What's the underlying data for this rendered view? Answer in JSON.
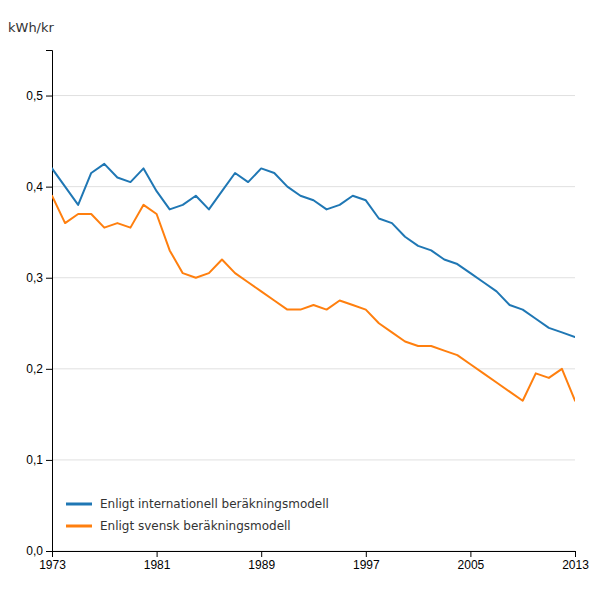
{
  "chart_data": {
    "type": "line",
    "ylabel": "kWh/kr",
    "x": [
      1973,
      1974,
      1975,
      1976,
      1977,
      1978,
      1979,
      1980,
      1981,
      1982,
      1983,
      1984,
      1985,
      1986,
      1987,
      1988,
      1989,
      1990,
      1991,
      1992,
      1993,
      1994,
      1995,
      1996,
      1997,
      1998,
      1999,
      2000,
      2001,
      2002,
      2003,
      2004,
      2005,
      2006,
      2007,
      2008,
      2009,
      2010,
      2011,
      2012,
      2013
    ],
    "series": [
      {
        "name": "Enligt internationell beräkningsmodell",
        "values": [
          0.42,
          0.4,
          0.38,
          0.415,
          0.425,
          0.41,
          0.405,
          0.42,
          0.395,
          0.375,
          0.38,
          0.39,
          0.375,
          0.395,
          0.415,
          0.405,
          0.42,
          0.415,
          0.4,
          0.39,
          0.385,
          0.375,
          0.38,
          0.39,
          0.385,
          0.365,
          0.36,
          0.345,
          0.335,
          0.33,
          0.32,
          0.315,
          0.305,
          0.295,
          0.285,
          0.27,
          0.265,
          0.255,
          0.245,
          0.24,
          0.235
        ]
      },
      {
        "name": "Enligt svensk beräkningsmodell",
        "values": [
          0.39,
          0.36,
          0.37,
          0.37,
          0.355,
          0.36,
          0.355,
          0.38,
          0.37,
          0.33,
          0.305,
          0.3,
          0.305,
          0.32,
          0.305,
          0.295,
          0.285,
          0.275,
          0.265,
          0.265,
          0.27,
          0.265,
          0.275,
          0.27,
          0.265,
          0.25,
          0.24,
          0.23,
          0.225,
          0.225,
          0.22,
          0.215,
          0.205,
          0.195,
          0.185,
          0.175,
          0.165,
          0.195,
          0.19,
          0.2,
          0.165
        ]
      }
    ],
    "xlim": [
      1973,
      2013
    ],
    "xticks": [
      1973,
      1981,
      1989,
      1997,
      2005,
      2013
    ],
    "ylim": [
      0.0,
      0.55
    ],
    "yticks": [
      {
        "value": 0.0,
        "label": "0,0"
      },
      {
        "value": 0.1,
        "label": "0,1"
      },
      {
        "value": 0.2,
        "label": "0,2"
      },
      {
        "value": 0.3,
        "label": "0,3"
      },
      {
        "value": 0.4,
        "label": "0,4"
      },
      {
        "value": 0.5,
        "label": "0,5"
      }
    ],
    "grid": true,
    "legend": "lower left"
  }
}
